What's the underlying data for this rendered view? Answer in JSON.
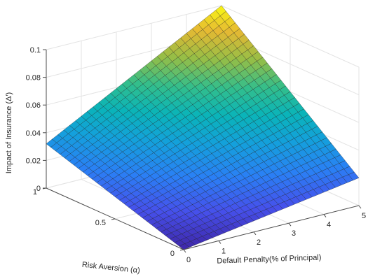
{
  "chart_data": {
    "type": "surface",
    "title": "",
    "xlabel": "Default Penalty(% of Principal)",
    "ylabel": "Risk Aversion (α)",
    "zlabel": "Impact of Insurance (Δ′)",
    "xlim": [
      0,
      5
    ],
    "ylim": [
      0,
      1
    ],
    "zlim": [
      0,
      0.1
    ],
    "x_ticks": [
      "0",
      "1",
      "2",
      "3",
      "4",
      "5"
    ],
    "y_ticks": [
      "0",
      "0.5",
      "1"
    ],
    "z_ticks": [
      "0",
      "0.02",
      "0.04",
      "0.06",
      "0.08",
      "0.1"
    ],
    "colormap": "parula",
    "grid": true,
    "corner_values": [
      {
        "x": 0,
        "y": 0,
        "z": 0.0
      },
      {
        "x": 5,
        "y": 0,
        "z": 0.02
      },
      {
        "x": 0,
        "y": 1,
        "z": 0.032
      },
      {
        "x": 5,
        "y": 1,
        "z": 0.1
      }
    ]
  }
}
